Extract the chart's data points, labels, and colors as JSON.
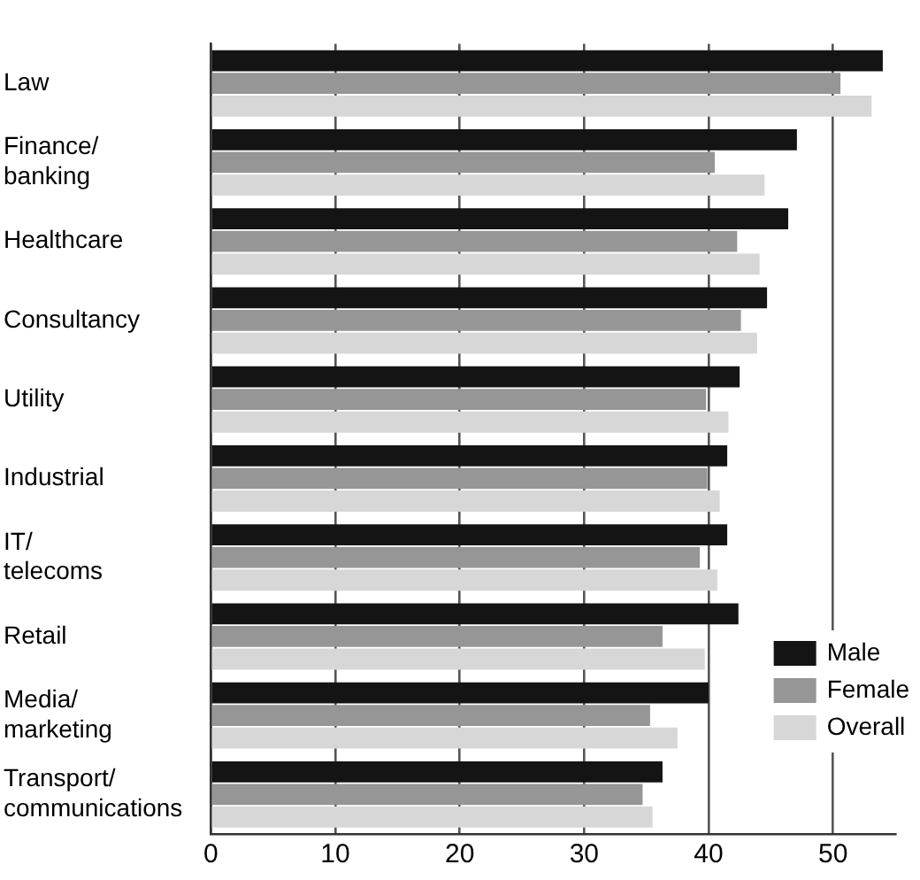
{
  "chart_data": {
    "type": "bar",
    "orientation": "horizontal",
    "categories": [
      "Law",
      "Finance/banking",
      "Healthcare",
      "Consultancy",
      "Utility",
      "Industrial",
      "IT/telecoms",
      "Retail",
      "Media/marketing",
      "Transport/communications"
    ],
    "series": [
      {
        "name": "Male",
        "color": "#141414",
        "values": [
          54.0,
          47.1,
          46.4,
          44.7,
          42.5,
          41.5,
          41.5,
          42.4,
          40.0,
          36.3
        ]
      },
      {
        "name": "Female",
        "color": "#969696",
        "values": [
          50.6,
          40.5,
          42.3,
          42.6,
          39.8,
          39.9,
          39.3,
          36.3,
          35.3,
          34.7
        ]
      },
      {
        "name": "Overall",
        "color": "#d7d7d7",
        "values": [
          53.1,
          44.5,
          44.1,
          43.9,
          41.6,
          40.9,
          40.7,
          39.7,
          37.5,
          35.5
        ]
      }
    ],
    "xlim": [
      0,
      55
    ],
    "xticks": [
      0,
      10,
      20,
      30,
      40,
      50
    ],
    "grid": "x",
    "legend": "bottom right"
  }
}
